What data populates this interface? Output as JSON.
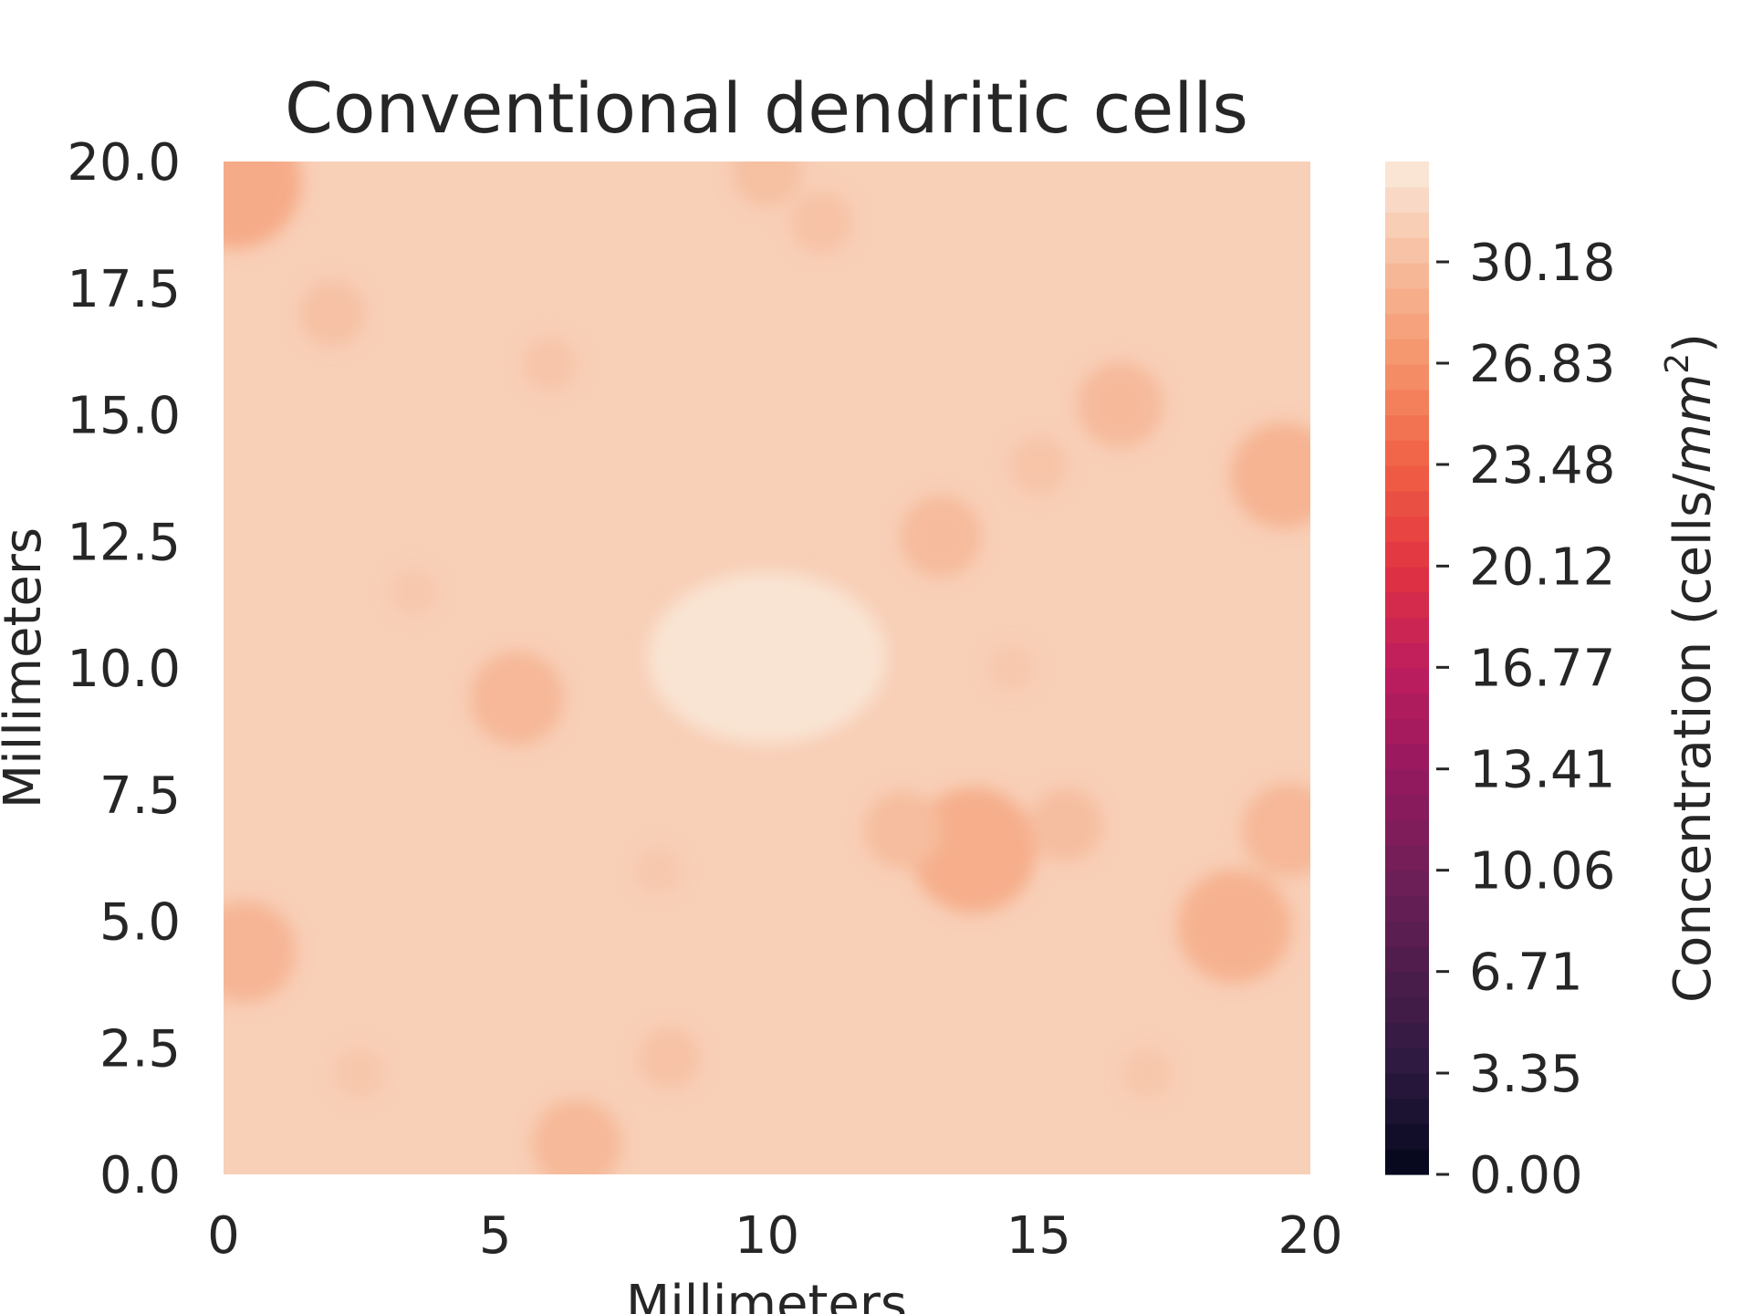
{
  "chart_data": {
    "type": "heatmap",
    "subtype": "filled-contour",
    "title": "Conventional dendritic cells",
    "xlabel": "Millimeters",
    "ylabel": "Millimeters",
    "xlim": [
      0,
      20
    ],
    "ylim": [
      0,
      20
    ],
    "x_ticks": [
      "0",
      "5",
      "10",
      "15",
      "20"
    ],
    "y_ticks": [
      "0.0",
      "2.5",
      "5.0",
      "7.5",
      "10.0",
      "12.5",
      "15.0",
      "17.5",
      "20.0"
    ],
    "colorbar": {
      "label_main": "Concentration (cells/",
      "label_unit": "mm",
      "label_exp": "2",
      "label_end": ")",
      "range": [
        0,
        33.5
      ],
      "ticks": [
        "0.00",
        "3.35",
        "6.71",
        "10.06",
        "13.41",
        "16.77",
        "20.12",
        "23.48",
        "26.83",
        "30.18"
      ],
      "colormap": "rocket",
      "colormap_stops": [
        "#03051a",
        "#2b1a3f",
        "#4c1d4b",
        "#701f57",
        "#96195f",
        "#be1d5d",
        "#e13342",
        "#f06043",
        "#f5936a",
        "#f6bc9d",
        "#faebdd"
      ]
    },
    "field": {
      "background_level": 31.5,
      "center_level": 33.0,
      "dense_spots": [
        {
          "x": 0.2,
          "y": 19.6,
          "value": 28.8
        },
        {
          "x": 0.4,
          "y": 4.4,
          "value": 29.6
        },
        {
          "x": 5.4,
          "y": 9.4,
          "value": 29.8
        },
        {
          "x": 6.5,
          "y": 0.6,
          "value": 29.9
        },
        {
          "x": 13.8,
          "y": 6.4,
          "value": 29.0
        },
        {
          "x": 12.5,
          "y": 6.8,
          "value": 30.2
        },
        {
          "x": 15.5,
          "y": 6.9,
          "value": 30.3
        },
        {
          "x": 16.5,
          "y": 15.2,
          "value": 30.0
        },
        {
          "x": 19.5,
          "y": 13.8,
          "value": 29.5
        },
        {
          "x": 19.6,
          "y": 6.8,
          "value": 29.8
        },
        {
          "x": 18.6,
          "y": 4.9,
          "value": 29.3
        },
        {
          "x": 13.2,
          "y": 12.6,
          "value": 30.1
        },
        {
          "x": 10.0,
          "y": 19.8,
          "value": 30.4
        },
        {
          "x": 11.0,
          "y": 18.8,
          "value": 30.6
        },
        {
          "x": 2.0,
          "y": 17.0,
          "value": 30.5
        },
        {
          "x": 15.0,
          "y": 14.0,
          "value": 30.7
        },
        {
          "x": 8.2,
          "y": 2.3,
          "value": 30.6
        },
        {
          "x": 3.5,
          "y": 11.5,
          "value": 31.0
        },
        {
          "x": 6.0,
          "y": 16.0,
          "value": 30.8
        },
        {
          "x": 2.5,
          "y": 2.0,
          "value": 30.9
        },
        {
          "x": 17.0,
          "y": 2.0,
          "value": 30.9
        },
        {
          "x": 14.5,
          "y": 10.0,
          "value": 31.0
        },
        {
          "x": 8.0,
          "y": 6.0,
          "value": 31.0
        }
      ]
    }
  }
}
